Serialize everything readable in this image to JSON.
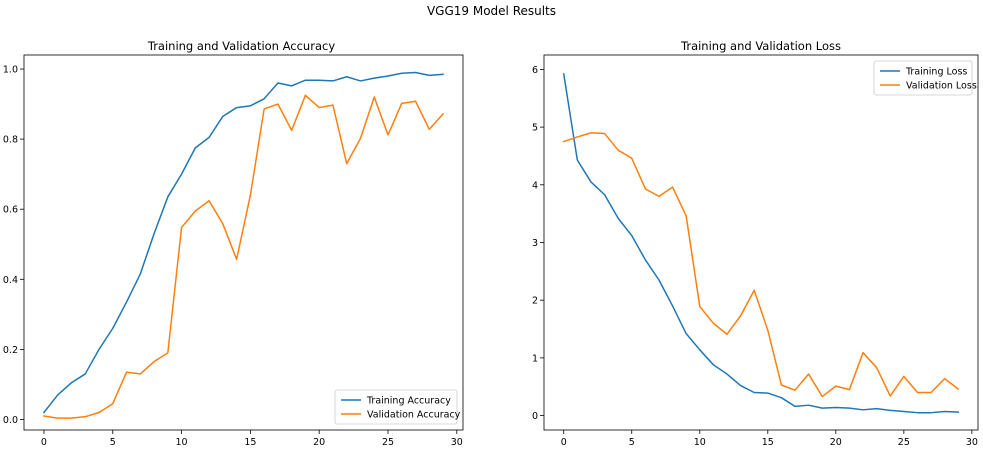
{
  "suptitle": "VGG19 Model Results",
  "chart_data": [
    {
      "type": "line",
      "title": "Training and Validation Accuracy",
      "xlabel": "",
      "ylabel": "",
      "xlim": [
        -1.45,
        30.45
      ],
      "ylim": [
        -0.03,
        1.04
      ],
      "xticks": [
        0,
        5,
        10,
        15,
        20,
        25,
        30
      ],
      "yticks": [
        0.0,
        0.2,
        0.4,
        0.6,
        0.8,
        1.0
      ],
      "ytick_labels": [
        "0.0",
        "0.2",
        "0.4",
        "0.6",
        "0.8",
        "1.0"
      ],
      "grid": false,
      "legend_position": "lower-right",
      "x": [
        0,
        1,
        2,
        3,
        4,
        5,
        6,
        7,
        8,
        9,
        10,
        11,
        12,
        13,
        14,
        15,
        16,
        17,
        18,
        19,
        20,
        21,
        22,
        23,
        24,
        25,
        26,
        27,
        28,
        29
      ],
      "series": [
        {
          "name": "Training Accuracy",
          "color": "#1f77b4",
          "values": [
            0.02,
            0.07,
            0.105,
            0.13,
            0.2,
            0.26,
            0.335,
            0.415,
            0.53,
            0.635,
            0.7,
            0.775,
            0.805,
            0.865,
            0.89,
            0.895,
            0.915,
            0.96,
            0.952,
            0.968,
            0.968,
            0.966,
            0.978,
            0.966,
            0.974,
            0.98,
            0.988,
            0.99,
            0.982,
            0.985
          ]
        },
        {
          "name": "Validation Accuracy",
          "color": "#ff7f0e",
          "values": [
            0.01,
            0.004,
            0.004,
            0.008,
            0.02,
            0.045,
            0.135,
            0.13,
            0.165,
            0.19,
            0.548,
            0.595,
            0.624,
            0.558,
            0.457,
            0.64,
            0.886,
            0.9,
            0.825,
            0.925,
            0.89,
            0.897,
            0.73,
            0.802,
            0.92,
            0.812,
            0.902,
            0.908,
            0.828,
            0.872
          ]
        }
      ]
    },
    {
      "type": "line",
      "title": "Training and Validation Loss",
      "xlabel": "",
      "ylabel": "",
      "xlim": [
        -1.45,
        30.45
      ],
      "ylim": [
        -0.25,
        6.25
      ],
      "xticks": [
        0,
        5,
        10,
        15,
        20,
        25,
        30
      ],
      "yticks": [
        0,
        1,
        2,
        3,
        4,
        5,
        6
      ],
      "ytick_labels": [
        "0",
        "1",
        "2",
        "3",
        "4",
        "5",
        "6"
      ],
      "grid": false,
      "legend_position": "upper-right",
      "x": [
        0,
        1,
        2,
        3,
        4,
        5,
        6,
        7,
        8,
        9,
        10,
        11,
        12,
        13,
        14,
        15,
        16,
        17,
        18,
        19,
        20,
        21,
        22,
        23,
        24,
        25,
        26,
        27,
        28,
        29
      ],
      "series": [
        {
          "name": "Training Loss",
          "color": "#1f77b4",
          "values": [
            5.92,
            4.43,
            4.05,
            3.83,
            3.42,
            3.12,
            2.7,
            2.35,
            1.9,
            1.42,
            1.14,
            0.88,
            0.72,
            0.52,
            0.4,
            0.39,
            0.31,
            0.16,
            0.18,
            0.13,
            0.14,
            0.13,
            0.1,
            0.12,
            0.09,
            0.07,
            0.05,
            0.05,
            0.07,
            0.06
          ]
        },
        {
          "name": "Validation Loss",
          "color": "#ff7f0e",
          "values": [
            4.75,
            4.83,
            4.9,
            4.89,
            4.6,
            4.46,
            3.93,
            3.8,
            3.96,
            3.46,
            1.89,
            1.6,
            1.41,
            1.73,
            2.17,
            1.48,
            0.53,
            0.44,
            0.72,
            0.33,
            0.51,
            0.45,
            1.09,
            0.83,
            0.34,
            0.68,
            0.4,
            0.4,
            0.64,
            0.46
          ]
        }
      ]
    }
  ]
}
